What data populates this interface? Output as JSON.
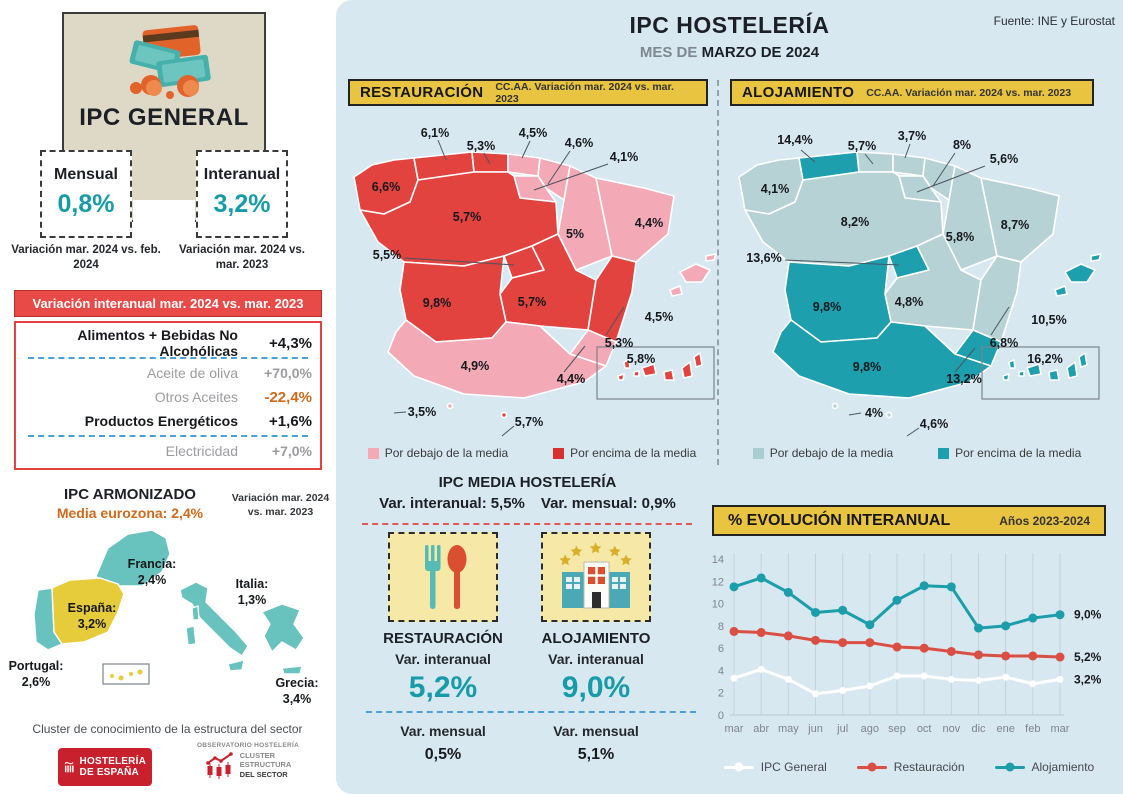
{
  "header": {
    "title": "IPC HOSTELERÍA",
    "subtitle_prefix": "MES DE ",
    "subtitle_bold": "MARZO DE 2024",
    "source": "Fuente: INE y Eurostat"
  },
  "ipc_general": {
    "title": "IPC GENERAL",
    "monthly_label": "Mensual",
    "monthly_value": "0,8%",
    "monthly_caption": "Variación mar. 2024 vs. feb. 2024",
    "yearly_label": "Interanual",
    "yearly_value": "3,2%",
    "yearly_caption": "Variación mar. 2024 vs. mar. 2023"
  },
  "variation_table": {
    "header": "Variación interanual mar. 2024 vs. mar. 2023",
    "rows": [
      {
        "label": "Alimentos + Bebidas No Alcohólicas",
        "value": "+4,3%"
      },
      {
        "label": "Aceite de oliva",
        "value": "+70,0%"
      },
      {
        "label": "Otros Aceites",
        "value": "-22,4%"
      },
      {
        "label": "Productos Energéticos",
        "value": "+1,6%"
      },
      {
        "label": "Electricidad",
        "value": "+7,0%"
      }
    ]
  },
  "armonizado": {
    "title": "IPC ARMONIZADO",
    "subtitle": "Media eurozona: 2,4%",
    "note": "Variación mar. 2024 vs. mar. 2023",
    "francia_name": "Francia:",
    "francia_value": "2,4%",
    "italia_name": "Italia:",
    "italia_value": "1,3%",
    "espana_name": "España:",
    "espana_value": "3,2%",
    "portugal_name": "Portugal:",
    "portugal_value": "2,6%",
    "grecia_name": "Grecia:",
    "grecia_value": "3,4%"
  },
  "footer": {
    "caption": "Cluster de conocimiento de la estructura del sector",
    "logo_hosteleria_line1": "HOSTELERÍA",
    "logo_hosteleria_line2": "DE ESPAÑA",
    "logo_observatorio": "OBSERVATORIO HOSTELERÍA",
    "logo_cluster_line1": "CLUSTER",
    "logo_cluster_line2": "ESTRUCTURA",
    "logo_cluster_line3": "DEL SECTOR"
  },
  "restauracion": {
    "header": "RESTAURACIÓN",
    "header_note": "CC.AA. Variación mar. 2024 vs. mar. 2023",
    "legend_below": "Por debajo de la media",
    "legend_above": "Por encima de la media",
    "labels": {
      "galicia": "6,6%",
      "asturias": "6,1%",
      "cantabria": "5,3%",
      "pais_vasco": "4,5%",
      "navarra": "4,6%",
      "rioja": "4,1%",
      "castilla_leon": "5,7%",
      "aragon": "5%",
      "cataluna": "4,4%",
      "madrid": "5,5%",
      "extremadura": "9,8%",
      "castilla_mancha": "5,7%",
      "valencia": "5,3%",
      "murcia": "4,4%",
      "andalucia": "4,9%",
      "baleares": "4,5%",
      "canarias": "5,8%",
      "ceuta": "3,5%",
      "melilla": "5,7%"
    }
  },
  "alojamiento": {
    "header": "ALOJAMIENTO",
    "header_note": "CC.AA. Variación mar. 2024 vs. mar. 2023",
    "legend_below": "Por debajo de la media",
    "legend_above": "Por encima de la media",
    "labels": {
      "galicia": "4,1%",
      "asturias": "14,4%",
      "cantabria": "5,7%",
      "pais_vasco": "3,7%",
      "navarra": "8%",
      "rioja": "5,6%",
      "castilla_leon": "8,2%",
      "aragon": "5,8%",
      "cataluna": "8,7%",
      "madrid": "13,6%",
      "extremadura": "9,8%",
      "castilla_mancha": "4,8%",
      "valencia": "6,8%",
      "murcia": "13,2%",
      "andalucia": "9,8%",
      "baleares": "10,5%",
      "canarias": "16,2%",
      "ceuta": "4%",
      "melilla": "4,6%"
    }
  },
  "media_hosteleria": {
    "title": "IPC MEDIA HOSTELERÍA",
    "stat1_label": "Var. interanual:",
    "stat1_value": "5,5%",
    "stat2_label": "Var. mensual:",
    "stat2_value": "0,9%",
    "restauracion": {
      "name": "RESTAURACIÓN",
      "inter_label": "Var. interanual",
      "inter_value": "5,2%",
      "mens_label": "Var. mensual",
      "mens_value": "0,5%"
    },
    "alojamiento": {
      "name": "ALOJAMIENTO",
      "inter_label": "Var. interanual",
      "inter_value": "9,0%",
      "mens_label": "Var. mensual",
      "mens_value": "5,1%"
    }
  },
  "evolution": {
    "header": "% EVOLUCIÓN INTERANUAL",
    "note": "Años 2023-2024"
  },
  "chart_data": {
    "type": "line",
    "title": "% EVOLUCIÓN INTERANUAL",
    "subtitle": "Años 2023-2024",
    "categories": [
      "mar",
      "abr",
      "may",
      "jun",
      "jul",
      "ago",
      "sep",
      "oct",
      "nov",
      "dic",
      "ene",
      "feb",
      "mar"
    ],
    "series": [
      {
        "name": "IPC General",
        "color": "#ffffff",
        "values": [
          3.3,
          4.1,
          3.2,
          1.9,
          2.2,
          2.6,
          3.5,
          3.5,
          3.2,
          3.1,
          3.4,
          2.8,
          3.2
        ],
        "end_label": "3,2%"
      },
      {
        "name": "Restauración",
        "color": "#d94f44",
        "values": [
          7.5,
          7.4,
          7.1,
          6.7,
          6.5,
          6.5,
          6.1,
          6.0,
          5.7,
          5.4,
          5.3,
          5.3,
          5.2
        ],
        "end_label": "5,2%"
      },
      {
        "name": "Alojamiento",
        "color": "#1b9daa",
        "values": [
          11.5,
          12.3,
          11.0,
          9.2,
          9.4,
          8.1,
          10.3,
          11.6,
          11.5,
          7.8,
          8.0,
          8.7,
          9.0
        ],
        "end_label": "9,0%"
      }
    ],
    "ylim": [
      0,
      14
    ],
    "yticks": [
      0,
      2,
      4,
      6,
      8,
      10,
      12,
      14
    ],
    "grid": "vertical",
    "legend_position": "bottom"
  }
}
